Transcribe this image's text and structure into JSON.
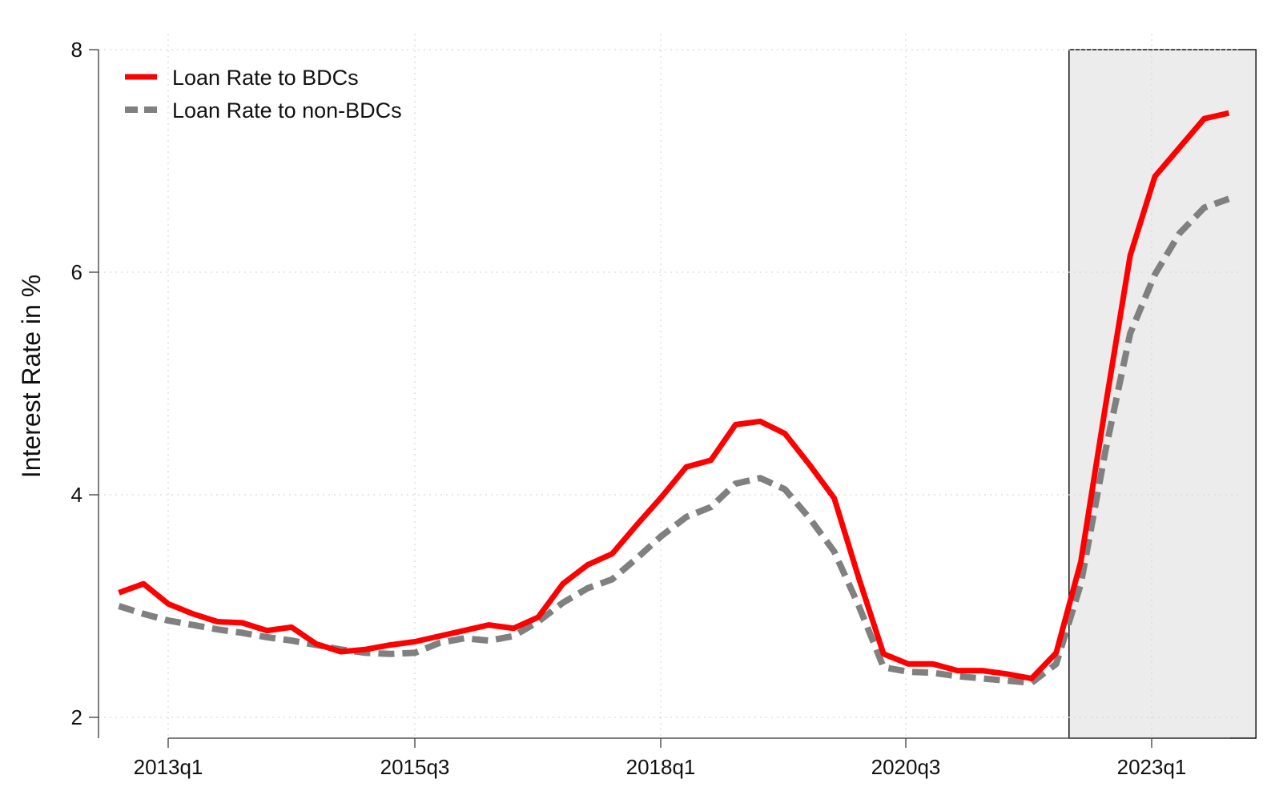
{
  "chart_data": {
    "type": "line",
    "ylabel": "Interest Rate in %",
    "xlabel": "",
    "title": "",
    "ylim": [
      2,
      8
    ],
    "yticks": [
      2,
      4,
      6,
      8
    ],
    "xticks": [
      "2013q1",
      "2015q3",
      "2018q1",
      "2020q3",
      "2023q1"
    ],
    "x_range": [
      "2012q3",
      "2024q1"
    ],
    "grid": true,
    "legend_position": "top-left",
    "shaded_region": {
      "from": "2022q1",
      "to": "2024q1"
    },
    "x": [
      "2012q3",
      "2012q4",
      "2013q1",
      "2013q2",
      "2013q3",
      "2013q4",
      "2014q1",
      "2014q2",
      "2014q3",
      "2014q4",
      "2015q1",
      "2015q2",
      "2015q3",
      "2015q4",
      "2016q1",
      "2016q2",
      "2016q3",
      "2016q4",
      "2017q1",
      "2017q2",
      "2017q3",
      "2017q4",
      "2018q1",
      "2018q2",
      "2018q3",
      "2018q4",
      "2019q1",
      "2019q2",
      "2019q3",
      "2019q4",
      "2020q1",
      "2020q2",
      "2020q3",
      "2020q4",
      "2021q1",
      "2021q2",
      "2021q3",
      "2021q4",
      "2022q1",
      "2022q2",
      "2022q3",
      "2022q4",
      "2023q1",
      "2023q2",
      "2023q3",
      "2023q4"
    ],
    "series": [
      {
        "name": "Loan Rate to BDCs",
        "color": "#ff0000",
        "style": "solid",
        "values": [
          3.12,
          3.2,
          3.02,
          2.93,
          2.86,
          2.85,
          2.78,
          2.81,
          2.66,
          2.59,
          2.61,
          2.65,
          2.68,
          2.73,
          2.78,
          2.83,
          2.8,
          2.9,
          3.2,
          3.37,
          3.47,
          3.73,
          3.98,
          4.25,
          4.31,
          4.63,
          4.66,
          4.55,
          4.27,
          3.97,
          3.25,
          2.57,
          2.48,
          2.48,
          2.42,
          2.42,
          2.39,
          2.35,
          2.58,
          3.4,
          4.8,
          6.15,
          6.86,
          7.12,
          7.38,
          7.43
        ]
      },
      {
        "name": "Loan Rate to non-BDCs",
        "color": "#808080",
        "style": "dashed",
        "values": [
          3.0,
          2.93,
          2.87,
          2.83,
          2.79,
          2.76,
          2.72,
          2.69,
          2.65,
          2.61,
          2.58,
          2.57,
          2.58,
          2.67,
          2.71,
          2.69,
          2.73,
          2.86,
          3.03,
          3.16,
          3.24,
          3.43,
          3.63,
          3.8,
          3.89,
          4.1,
          4.15,
          4.05,
          3.79,
          3.49,
          3.0,
          2.45,
          2.41,
          2.4,
          2.37,
          2.35,
          2.33,
          2.31,
          2.48,
          3.2,
          4.4,
          5.45,
          5.98,
          6.35,
          6.58,
          6.66
        ]
      }
    ]
  }
}
